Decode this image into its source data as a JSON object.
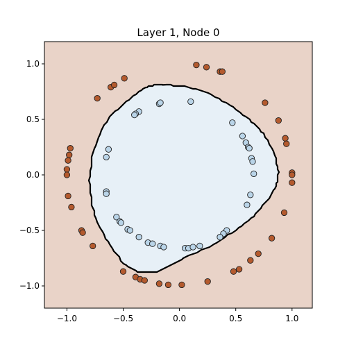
{
  "chart_data": {
    "type": "scatter",
    "title": "Layer 1, Node 0",
    "xlabel": "",
    "ylabel": "",
    "xlim": [
      -1.2,
      1.18
    ],
    "ylim": [
      -1.2,
      1.2
    ],
    "x_ticks": [
      -1.0,
      -0.5,
      0.0,
      0.5,
      1.0
    ],
    "x_tick_labels": [
      "−1.0",
      "−0.5",
      "0.0",
      "0.5",
      "1.0"
    ],
    "y_ticks": [
      1.0,
      0.5,
      0.0,
      -0.5,
      -1.0
    ],
    "y_tick_labels": [
      "1.0",
      "0.5",
      "0.0",
      "−0.5",
      "−1.0"
    ],
    "grid": false,
    "legend": "none",
    "colors": {
      "background": "#e9d3c8",
      "inner_region": "#e7f0f7",
      "boundary": "#000000",
      "outer_points": "#b45a2e",
      "inner_points": "#b9d4e8"
    },
    "decision_boundary": [
      [
        -0.15,
        0.81
      ],
      [
        0.05,
        0.8
      ],
      [
        0.25,
        0.74
      ],
      [
        0.45,
        0.63
      ],
      [
        0.62,
        0.5
      ],
      [
        0.75,
        0.37
      ],
      [
        0.85,
        0.18
      ],
      [
        0.88,
        0.02
      ],
      [
        0.86,
        -0.1
      ],
      [
        0.78,
        -0.23
      ],
      [
        0.66,
        -0.37
      ],
      [
        0.5,
        -0.5
      ],
      [
        0.3,
        -0.63
      ],
      [
        0.08,
        -0.73
      ],
      [
        -0.05,
        -0.8
      ],
      [
        -0.2,
        -0.87
      ],
      [
        -0.37,
        -0.87
      ],
      [
        -0.5,
        -0.8
      ],
      [
        -0.62,
        -0.63
      ],
      [
        -0.72,
        -0.45
      ],
      [
        -0.78,
        -0.27
      ],
      [
        -0.8,
        -0.05
      ],
      [
        -0.77,
        0.2
      ],
      [
        -0.7,
        0.4
      ],
      [
        -0.6,
        0.55
      ],
      [
        -0.45,
        0.68
      ],
      [
        -0.32,
        0.78
      ],
      [
        -0.22,
        0.81
      ]
    ],
    "series": [
      {
        "name": "",
        "class": "outer",
        "points": [
          [
            0.15,
            0.99
          ],
          [
            0.24,
            0.97
          ],
          [
            0.36,
            0.93
          ],
          [
            0.38,
            0.93
          ],
          [
            -0.61,
            0.79
          ],
          [
            -0.58,
            0.81
          ],
          [
            -0.49,
            0.87
          ],
          [
            -0.73,
            0.69
          ],
          [
            0.76,
            0.65
          ],
          [
            0.88,
            0.49
          ],
          [
            0.94,
            0.33
          ],
          [
            0.95,
            0.28
          ],
          [
            -0.97,
            0.24
          ],
          [
            -0.98,
            0.18
          ],
          [
            -0.99,
            0.13
          ],
          [
            -1.0,
            0.05
          ],
          [
            -1.0,
            0.0
          ],
          [
            1.0,
            0.02
          ],
          [
            1.0,
            0.0
          ],
          [
            1.0,
            -0.07
          ],
          [
            -0.99,
            -0.19
          ],
          [
            -0.96,
            -0.29
          ],
          [
            0.93,
            -0.34
          ],
          [
            0.82,
            -0.57
          ],
          [
            -0.87,
            -0.5
          ],
          [
            -0.86,
            -0.52
          ],
          [
            -0.77,
            -0.64
          ],
          [
            0.7,
            -0.71
          ],
          [
            0.63,
            -0.77
          ],
          [
            0.53,
            -0.85
          ],
          [
            0.48,
            -0.87
          ],
          [
            -0.5,
            -0.87
          ],
          [
            -0.39,
            -0.92
          ],
          [
            -0.35,
            -0.94
          ],
          [
            -0.31,
            -0.95
          ],
          [
            -0.18,
            -0.98
          ],
          [
            -0.1,
            -0.99
          ],
          [
            0.02,
            -0.99
          ],
          [
            0.25,
            -0.96
          ]
        ]
      },
      {
        "name": "",
        "class": "inner",
        "points": [
          [
            -0.18,
            0.64
          ],
          [
            -0.17,
            0.65
          ],
          [
            0.1,
            0.66
          ],
          [
            -0.36,
            0.57
          ],
          [
            -0.39,
            0.55
          ],
          [
            -0.4,
            0.54
          ],
          [
            0.47,
            0.47
          ],
          [
            0.56,
            0.35
          ],
          [
            0.59,
            0.29
          ],
          [
            0.61,
            0.25
          ],
          [
            0.62,
            0.24
          ],
          [
            -0.63,
            0.23
          ],
          [
            -0.65,
            0.16
          ],
          [
            0.64,
            0.15
          ],
          [
            0.65,
            0.12
          ],
          [
            0.66,
            0.01
          ],
          [
            -0.65,
            -0.15
          ],
          [
            -0.65,
            -0.17
          ],
          [
            0.63,
            -0.18
          ],
          [
            0.6,
            -0.27
          ],
          [
            -0.56,
            -0.38
          ],
          [
            -0.53,
            -0.42
          ],
          [
            -0.52,
            -0.43
          ],
          [
            -0.46,
            -0.49
          ],
          [
            -0.44,
            -0.5
          ],
          [
            0.42,
            -0.5
          ],
          [
            0.39,
            -0.53
          ],
          [
            0.36,
            -0.56
          ],
          [
            -0.36,
            -0.56
          ],
          [
            -0.28,
            -0.61
          ],
          [
            -0.24,
            -0.62
          ],
          [
            -0.17,
            -0.64
          ],
          [
            -0.14,
            -0.65
          ],
          [
            0.05,
            -0.66
          ],
          [
            0.08,
            -0.66
          ],
          [
            0.12,
            -0.65
          ],
          [
            0.18,
            -0.64
          ]
        ]
      }
    ]
  }
}
